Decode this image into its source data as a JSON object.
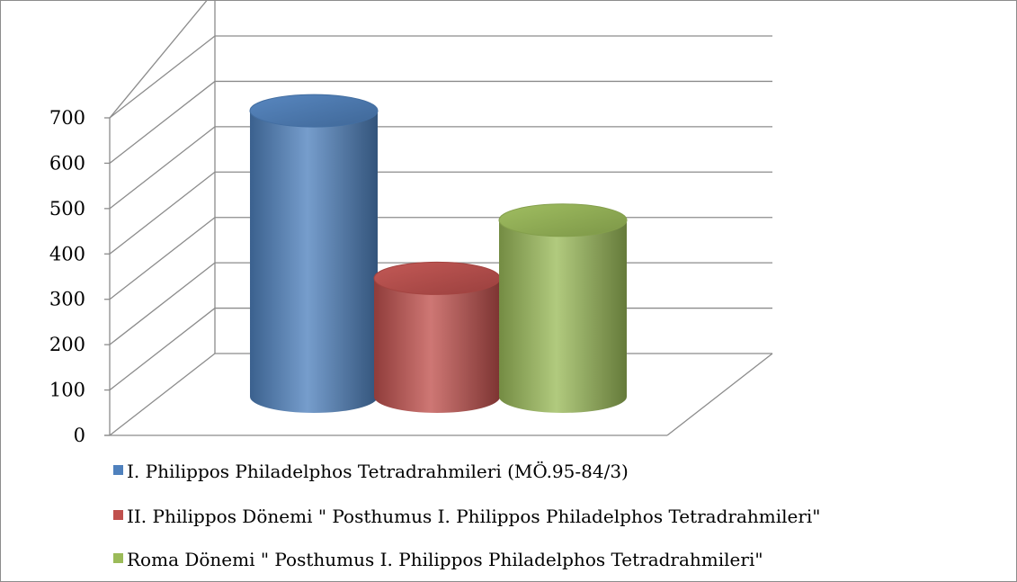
{
  "chart_data": {
    "type": "bar",
    "style": "3d-cylinder",
    "categories": [
      ""
    ],
    "series": [
      {
        "name": "I. Philippos Philadelphos Tetradrahmileri (MÖ.95-84/3)",
        "values": [
          640
        ],
        "color": "#4f81bd"
      },
      {
        "name": "II. Philippos Dönemi \" Posthumus I. Philippos Philadelphos Tetradrahmileri\"",
        "values": [
          265
        ],
        "color": "#c0504d"
      },
      {
        "name": "Roma Dönemi \" Posthumus I. Philippos Philadelphos Tetradrahmileri\"",
        "values": [
          395
        ],
        "color": "#9bbb59"
      }
    ],
    "y_ticks": [
      "0",
      "100",
      "200",
      "300",
      "400",
      "500",
      "600",
      "700"
    ],
    "ylim": [
      0,
      700
    ],
    "grid": true,
    "legend_position": "bottom"
  }
}
